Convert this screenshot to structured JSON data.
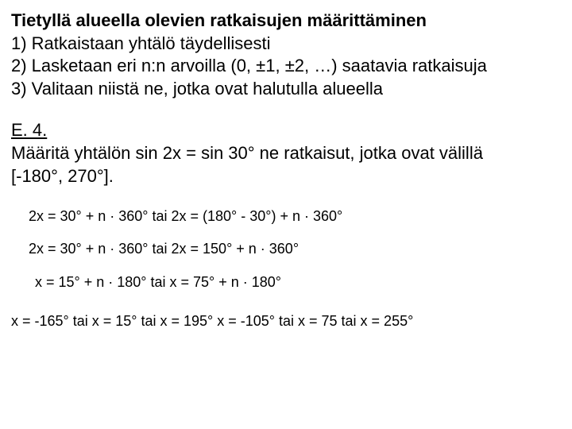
{
  "heading": "Tietyllä alueella olevien ratkaisujen määrittäminen",
  "steps": [
    "1) Ratkaistaan yhtälö täydellisesti",
    "2) Lasketaan eri n:n arvoilla (0, ±1, ±2, …) saatavia ratkaisuja",
    "3) Valitaan niistä ne, jotka ovat halutulla alueella"
  ],
  "exercise": {
    "label": "E. 4.",
    "line1": "Määritä yhtälön sin 2x = sin 30° ne ratkaisut, jotka ovat välillä",
    "line2": " [-180°, 270°]."
  },
  "equations": {
    "eq1": "2x = 30° + n · 360°  tai  2x = (180° - 30°) + n · 360°",
    "eq2": "2x = 30° + n · 360°  tai  2x = 150° + n · 360°",
    "eq3": "x = 15° + n · 180°  tai  x = 75° + n · 180°",
    "eq4": "x = -165° tai x = 15°  tai  x = 195°  x = -105°  tai  x = 75  tai  x = 255°"
  }
}
